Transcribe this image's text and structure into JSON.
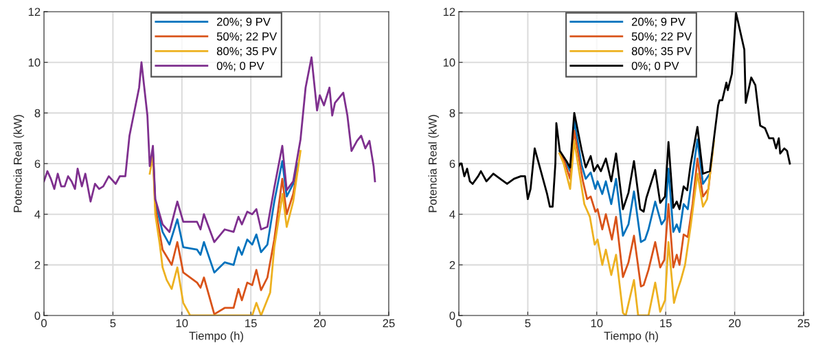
{
  "chart_data": [
    {
      "type": "line",
      "xlabel": "Tiempo (h)",
      "ylabel": "Potencia Real (kW)",
      "xlim": [
        0,
        25
      ],
      "ylim": [
        0,
        12
      ],
      "xticks": [
        0,
        5,
        10,
        15,
        20,
        25
      ],
      "yticks": [
        0,
        2,
        4,
        6,
        8,
        10,
        12
      ],
      "grid": true,
      "legend": "top",
      "line_style": "solid",
      "marker": "none",
      "series": [
        {
          "name": "20%; 9 PV",
          "color": "#0072bd",
          "x": [
            7.9,
            8.07,
            8.6,
            9.1,
            9.67,
            10.1,
            11.1,
            11.35,
            11.6,
            12.35,
            13.1,
            13.75,
            14.1,
            14.35,
            14.74,
            15.1,
            15.4,
            15.74,
            16.2,
            16.7,
            17.28,
            17.6,
            18.07,
            18.4
          ],
          "values": [
            6.5,
            4.5,
            3.3,
            2.8,
            3.8,
            2.7,
            2.6,
            2.4,
            2.9,
            1.7,
            2.1,
            2.0,
            2.7,
            2.4,
            3.0,
            2.8,
            3.2,
            2.5,
            2.8,
            4.5,
            6.1,
            4.7,
            5.2,
            6.0
          ]
        },
        {
          "name": "50%; 22 PV",
          "color": "#d95319",
          "x": [
            7.9,
            8.07,
            8.6,
            9.26,
            9.67,
            10.1,
            11.1,
            11.35,
            11.6,
            12.35,
            13.1,
            13.75,
            14.1,
            14.35,
            14.74,
            15.1,
            15.4,
            15.74,
            16.2,
            16.7,
            17.28,
            17.6,
            18.07,
            18.4
          ],
          "values": [
            6.4,
            4.3,
            2.6,
            2.0,
            2.9,
            1.7,
            1.3,
            1.1,
            1.5,
            0.05,
            0.3,
            0.3,
            1.05,
            0.6,
            1.3,
            1.2,
            1.8,
            1.0,
            1.5,
            3.0,
            5.4,
            4.0,
            4.8,
            5.8
          ]
        },
        {
          "name": "80%; 35 PV",
          "color": "#edb120",
          "x": [
            7.67,
            7.9,
            8.07,
            8.4,
            8.6,
            8.9,
            9.26,
            9.67,
            10.1,
            10.6,
            15.1,
            15.4,
            15.74,
            16.4,
            16.7,
            17.3,
            17.6,
            18.07,
            18.6
          ],
          "values": [
            5.6,
            6.3,
            4.0,
            2.8,
            1.9,
            1.4,
            1.05,
            1.9,
            0.5,
            0,
            0,
            0.5,
            0,
            0.9,
            2.7,
            4.8,
            3.5,
            4.5,
            6.5
          ]
        },
        {
          "name": "0%; 0 PV",
          "color": "#7e2f8e",
          "x": [
            0,
            0.25,
            0.5,
            0.75,
            1.0,
            1.25,
            1.5,
            1.75,
            2.0,
            2.25,
            2.44,
            2.75,
            3.0,
            3.38,
            3.7,
            4.0,
            4.3,
            4.7,
            5.2,
            5.5,
            5.9,
            6.2,
            6.9,
            7.07,
            7.5,
            7.67,
            7.9,
            8.07,
            8.6,
            9.1,
            9.67,
            10.1,
            11.1,
            11.35,
            11.6,
            12.35,
            13.1,
            13.75,
            14.1,
            14.35,
            14.74,
            15.1,
            15.4,
            15.74,
            16.2,
            16.7,
            17.28,
            17.6,
            18.07,
            18.6,
            18.97,
            19.4,
            19.8,
            20.0,
            20.3,
            20.7,
            20.9,
            21.1,
            21.7,
            22.0,
            22.3,
            22.7,
            23.0,
            23.3,
            23.6,
            23.9,
            24.0
          ],
          "values": [
            5.3,
            5.7,
            5.4,
            5.0,
            5.6,
            5.1,
            5.1,
            5.5,
            5.3,
            5.0,
            5.8,
            5.1,
            5.6,
            4.5,
            5.2,
            5.0,
            5.1,
            5.5,
            5.2,
            5.5,
            5.5,
            7.1,
            9.0,
            10.0,
            7.9,
            5.9,
            6.7,
            4.6,
            3.6,
            3.3,
            4.5,
            3.7,
            3.7,
            3.4,
            4.0,
            2.9,
            3.4,
            3.3,
            3.9,
            3.6,
            4.1,
            4.0,
            4.2,
            3.4,
            3.5,
            5.05,
            6.7,
            4.95,
            5.3,
            6.95,
            9.0,
            10.2,
            8.1,
            8.7,
            8.3,
            9.0,
            7.9,
            8.4,
            8.8,
            7.9,
            6.5,
            6.9,
            7.1,
            6.6,
            6.9,
            5.9,
            5.3
          ]
        }
      ]
    },
    {
      "type": "line",
      "xlabel": "Tiempo (h)",
      "ylabel": "Potencia Real (kW)",
      "xlim": [
        0,
        25
      ],
      "ylim": [
        0,
        12
      ],
      "xticks": [
        0,
        5,
        10,
        15,
        20,
        25
      ],
      "yticks": [
        0,
        2,
        4,
        6,
        8,
        10,
        12
      ],
      "grid": true,
      "legend": "top",
      "line_style": "solid",
      "marker": "none",
      "series": [
        {
          "name": "20%; 9 PV",
          "color": "#0072bd",
          "x": [
            7.3,
            7.65,
            8.07,
            8.37,
            8.9,
            9.2,
            9.56,
            9.9,
            10.06,
            10.4,
            10.66,
            11.05,
            11.4,
            11.9,
            12.3,
            12.7,
            13.2,
            13.5,
            13.75,
            14.24,
            14.7,
            14.95,
            15.2,
            15.55,
            15.8,
            16.0,
            16.3,
            16.6,
            16.9,
            17.3,
            17.7,
            18.2
          ],
          "values": [
            6.5,
            6.2,
            5.7,
            7.7,
            5.95,
            5.4,
            5.65,
            5.0,
            5.3,
            4.8,
            5.3,
            4.4,
            5.4,
            3.15,
            3.6,
            4.9,
            2.9,
            3.0,
            3.4,
            4.5,
            3.6,
            3.8,
            5.8,
            3.3,
            3.6,
            3.3,
            4.4,
            4.2,
            5.4,
            6.95,
            5.2,
            5.6
          ]
        },
        {
          "name": "50%; 22 PV",
          "color": "#d95319",
          "x": [
            7.3,
            7.65,
            8.07,
            8.37,
            9.0,
            9.3,
            9.56,
            9.9,
            10.06,
            10.4,
            10.66,
            11.1,
            11.4,
            11.9,
            12.3,
            12.7,
            13.2,
            13.4,
            13.75,
            14.24,
            14.6,
            14.9,
            15.2,
            15.55,
            15.8,
            16.0,
            16.3,
            16.6,
            16.95,
            17.3,
            17.7,
            18.1,
            18.4
          ],
          "values": [
            6.4,
            6.1,
            5.4,
            7.3,
            5.3,
            4.6,
            4.7,
            4.1,
            4.2,
            3.4,
            4.0,
            3.0,
            3.9,
            1.52,
            2.1,
            3.15,
            1.15,
            1.2,
            1.8,
            2.9,
            1.9,
            2.2,
            4.4,
            1.9,
            2.4,
            2.0,
            3.2,
            3.1,
            4.4,
            6.2,
            4.7,
            5.0,
            6.5
          ]
        },
        {
          "name": "80%; 35 PV",
          "color": "#edb120",
          "x": [
            7.3,
            7.6,
            8.07,
            8.37,
            9.1,
            9.5,
            9.85,
            10.06,
            10.4,
            10.66,
            11.05,
            11.4,
            11.9,
            12.1,
            12.7,
            13.0,
            13.75,
            14.24,
            14.6,
            14.95,
            15.2,
            15.6,
            15.85,
            16.1,
            16.4,
            16.8,
            17.3,
            17.7,
            18.0,
            18.5
          ],
          "values": [
            6.4,
            6.0,
            5.0,
            6.9,
            4.4,
            3.9,
            2.8,
            3.0,
            2.0,
            2.6,
            1.6,
            2.4,
            0.1,
            0,
            1.4,
            0,
            0,
            1.3,
            0.15,
            0.6,
            2.9,
            0.5,
            1.0,
            1.4,
            2.0,
            3.5,
            5.6,
            4.3,
            4.6,
            6.9
          ]
        },
        {
          "name": "0%; 0 PV",
          "color": "#000000",
          "x": [
            0,
            0.1,
            0.2,
            0.4,
            0.6,
            0.8,
            1.0,
            1.4,
            1.6,
            1.8,
            2.0,
            2.5,
            3.0,
            3.5,
            4.0,
            4.5,
            4.8,
            5.0,
            5.2,
            5.5,
            6.0,
            6.4,
            6.6,
            6.8,
            7.0,
            7.07,
            7.32,
            7.8,
            8.07,
            8.37,
            8.9,
            9.2,
            9.56,
            9.8,
            10.06,
            10.3,
            10.66,
            11.05,
            11.4,
            11.9,
            12.3,
            12.7,
            13.15,
            13.4,
            13.6,
            14.24,
            14.6,
            14.95,
            15.2,
            15.55,
            15.8,
            16.0,
            16.3,
            16.56,
            16.8,
            17.3,
            17.7,
            18.2,
            18.5,
            18.8,
            18.9,
            19.1,
            19.4,
            19.5,
            19.8,
            20.1,
            20.7,
            20.8,
            21.2,
            21.5,
            21.85,
            22.2,
            22.5,
            22.8,
            23.0,
            23.2,
            23.3,
            23.6,
            23.8,
            24.0
          ],
          "values": [
            5.9,
            6.0,
            6.0,
            5.5,
            5.8,
            5.3,
            5.2,
            5.5,
            5.7,
            5.5,
            5.3,
            5.6,
            5.4,
            5.2,
            5.4,
            5.5,
            5.5,
            4.6,
            5.0,
            6.6,
            5.6,
            4.8,
            4.3,
            4.3,
            6.0,
            7.6,
            6.5,
            6.1,
            5.85,
            8.0,
            6.55,
            5.85,
            6.3,
            5.7,
            5.95,
            5.7,
            6.2,
            5.3,
            6.4,
            4.2,
            4.85,
            6.1,
            4.2,
            4.1,
            4.65,
            5.75,
            4.45,
            4.7,
            6.85,
            4.25,
            4.5,
            4.2,
            5.1,
            4.95,
            5.95,
            7.45,
            5.6,
            5.7,
            7.0,
            8.3,
            8.5,
            8.5,
            9.2,
            8.9,
            9.55,
            11.95,
            10.5,
            8.4,
            9.4,
            9.1,
            7.5,
            7.4,
            7.0,
            7.0,
            6.6,
            7.0,
            6.4,
            6.6,
            6.5,
            6.0
          ]
        }
      ]
    }
  ]
}
